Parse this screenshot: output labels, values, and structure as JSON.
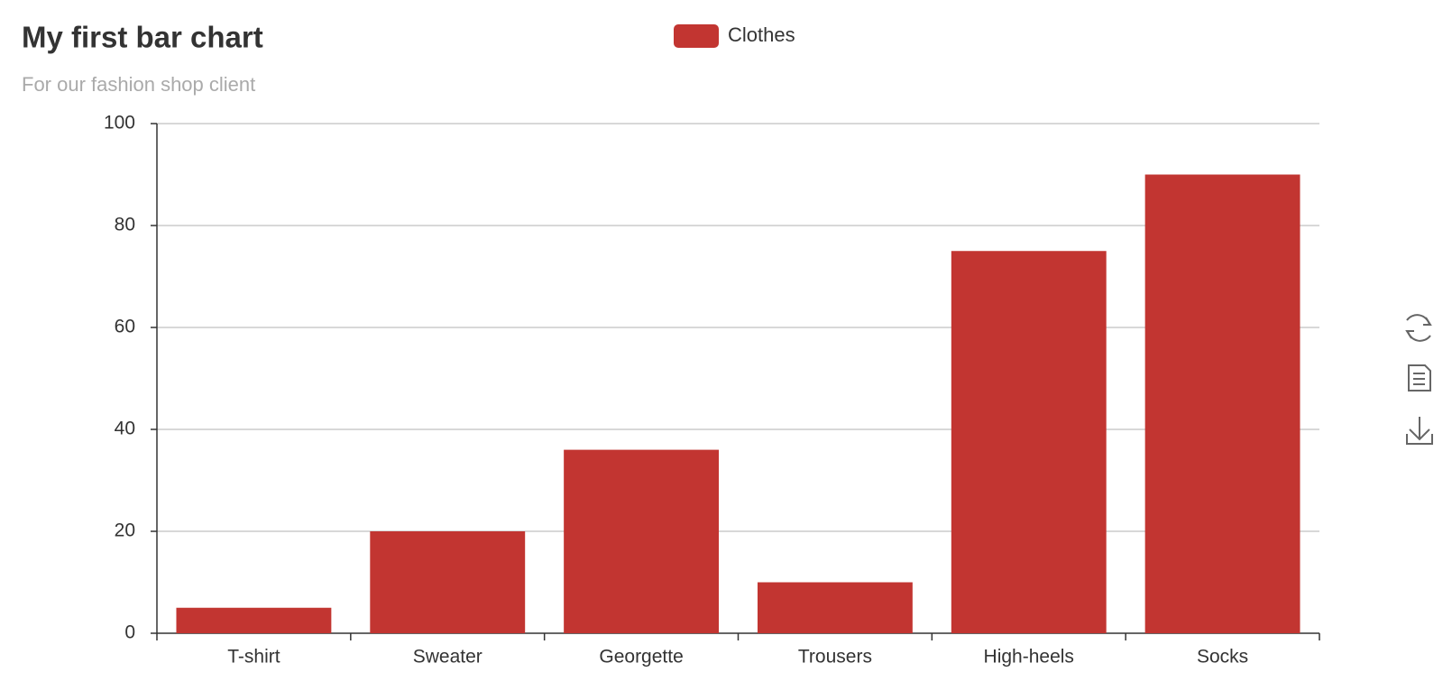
{
  "chart_data": {
    "type": "bar",
    "title": "My first bar chart",
    "subtitle": "For our fashion shop client",
    "categories": [
      "T-shirt",
      "Sweater",
      "Georgette",
      "Trousers",
      "High-heels",
      "Socks"
    ],
    "series": [
      {
        "name": "Clothes",
        "color": "#c23531",
        "values": [
          5,
          20,
          36,
          10,
          75,
          90
        ]
      }
    ],
    "ylim": [
      0,
      100
    ],
    "yticks": [
      0,
      20,
      40,
      60,
      80,
      100
    ],
    "grid": true,
    "legend": "top"
  }
}
